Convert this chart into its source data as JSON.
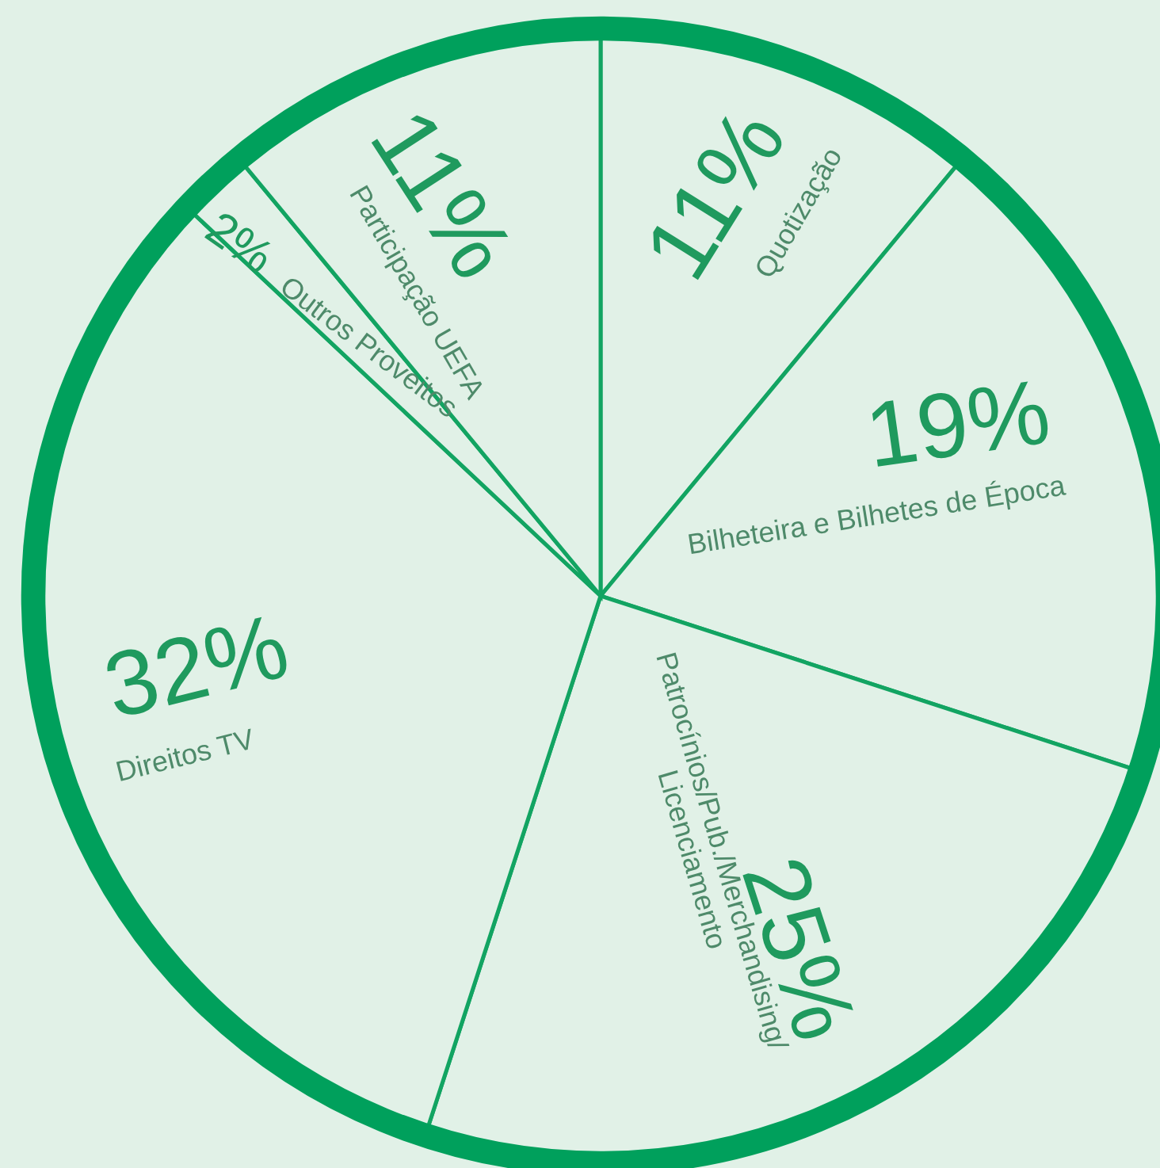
{
  "chart_data": {
    "type": "pie",
    "categories": [
      "Quotização",
      "Bilheteira e Bilhetes de Época",
      "Patrocínios/Pub./Merchandising/\nLicenciamento",
      "Direitos TV",
      "Outros Proveitos",
      "Participação UEFA"
    ],
    "values": [
      11,
      19,
      25,
      32,
      2,
      11
    ],
    "value_labels": [
      "11%",
      "19%",
      "25%",
      "32%",
      "2%",
      "11%"
    ],
    "colors": [
      "#e1f1e7",
      "#e1f1e7",
      "#e1f1e7",
      "#e1f1e7",
      "#e1f1e7",
      "#e1f1e7"
    ]
  }
}
